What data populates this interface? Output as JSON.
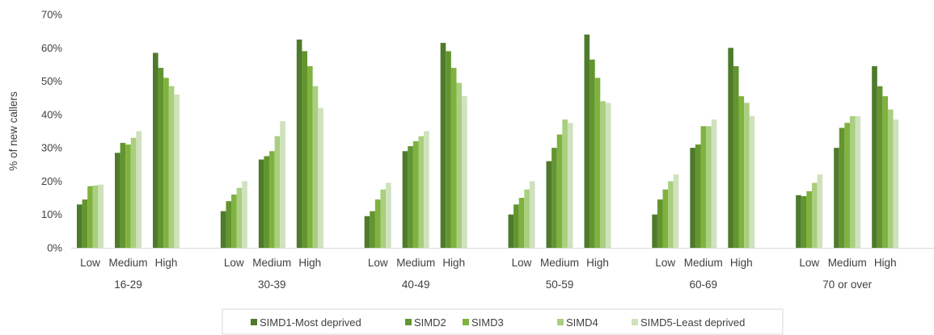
{
  "chart_data": {
    "type": "bar",
    "ylabel": "% of new callers",
    "ylim": [
      0,
      70
    ],
    "yticks": [
      "0%",
      "10%",
      "20%",
      "30%",
      "40%",
      "50%",
      "60%",
      "70%"
    ],
    "grid": false,
    "legend_position": "bottom",
    "groups": [
      "16-29",
      "30-39",
      "40-49",
      "50-59",
      "60-69",
      "70 or over"
    ],
    "subcategories": [
      "Low",
      "Medium",
      "High"
    ],
    "series": [
      {
        "name": "SIMD1-Most deprived",
        "color": "#4e7a2c",
        "values": [
          [
            13,
            28.5,
            58.5
          ],
          [
            11,
            26.5,
            62.5
          ],
          [
            9.5,
            29,
            61.5
          ],
          [
            10,
            26,
            64
          ],
          [
            10,
            30,
            60
          ],
          [
            15.8,
            30,
            54.5
          ]
        ]
      },
      {
        "name": "SIMD2",
        "color": "#63952f",
        "values": [
          [
            14.5,
            31.5,
            54
          ],
          [
            14,
            27.5,
            59
          ],
          [
            11,
            30.5,
            59
          ],
          [
            13,
            30,
            56.5
          ],
          [
            14.5,
            31,
            54.5
          ],
          [
            15.5,
            36,
            48.5
          ]
        ]
      },
      {
        "name": "SIMD3",
        "color": "#7fb23e",
        "values": [
          [
            18.5,
            31,
            51
          ],
          [
            16,
            29,
            54.5
          ],
          [
            14.5,
            32,
            54
          ],
          [
            15,
            34,
            51
          ],
          [
            17.5,
            36.5,
            45.5
          ],
          [
            17,
            37.5,
            45.5
          ]
        ]
      },
      {
        "name": "SIMD4",
        "color": "#a9cf7f",
        "values": [
          [
            18.7,
            33,
            48.5
          ],
          [
            18,
            33.5,
            48.5
          ],
          [
            17.5,
            33.5,
            49.5
          ],
          [
            17.5,
            38.5,
            44
          ],
          [
            20,
            36.5,
            43.5
          ],
          [
            19.5,
            39.5,
            41.5
          ]
        ]
      },
      {
        "name": "SIMD5-Least deprived",
        "color": "#cfe2bd",
        "values": [
          [
            19,
            35,
            46
          ],
          [
            20,
            38,
            42
          ],
          [
            19.5,
            35,
            45.5
          ],
          [
            20,
            37.5,
            43.5
          ],
          [
            22,
            38.5,
            39.5
          ],
          [
            22,
            39.5,
            38.5
          ]
        ]
      }
    ]
  }
}
